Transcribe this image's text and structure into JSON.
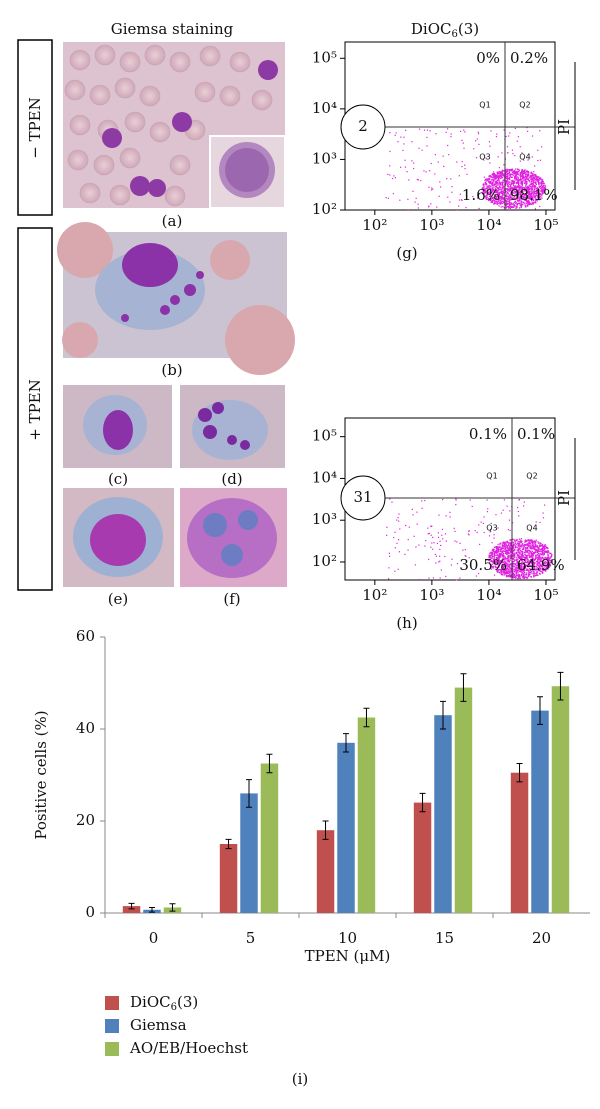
{
  "panels": {
    "giemsa_title": "Giemsa staining",
    "minus_tpen": "− TPEN",
    "plus_tpen": "+ TPEN",
    "image_labels": [
      "(a)",
      "(b)",
      "(c)",
      "(d)",
      "(e)",
      "(f)"
    ]
  },
  "flow_cytometry": {
    "title": "DiOC6(3)",
    "plots": [
      {
        "label": "(g)",
        "circle": "2",
        "axis_label": "PI",
        "quadrants": [
          "Q1",
          "Q2",
          "Q3",
          "Q4"
        ],
        "percents": [
          {
            "value": 0,
            "label": "0%"
          },
          {
            "value": 0.2,
            "label": "0.2%"
          },
          {
            "value": 1.6,
            "label": "1.6%"
          },
          {
            "value": 98.1,
            "label": "98.1%"
          }
        ],
        "xlim": [
          30,
          144000
        ],
        "ylim": [
          100,
          210000
        ],
        "xticks": [
          {
            "value": 100,
            "label": "10²"
          },
          {
            "value": 1000,
            "label": "10³"
          },
          {
            "value": 10000,
            "label": "10⁴"
          },
          {
            "value": 100000,
            "label": "10⁵"
          }
        ],
        "yticks": [
          {
            "value": 100,
            "label": "10²"
          },
          {
            "value": 1000,
            "label": "10³"
          },
          {
            "value": 10000,
            "label": "10⁴"
          },
          {
            "value": 100000,
            "label": "10⁵"
          }
        ]
      },
      {
        "label": "(h)",
        "circle": "31",
        "axis_label": "PI",
        "quadrants": [
          "Q1",
          "Q2",
          "Q3",
          "Q4"
        ],
        "percents": [
          {
            "value": 0.1,
            "label": "0.1%"
          },
          {
            "value": 0.1,
            "label": "0.1%"
          },
          {
            "value": 30.5,
            "label": "30.5%"
          },
          {
            "value": 64.9,
            "label": "64.9%"
          }
        ],
        "xlim": [
          30,
          144000
        ],
        "ylim": [
          37,
          280000
        ],
        "xticks": [
          {
            "value": 100,
            "label": "10²"
          },
          {
            "value": 1000,
            "label": "10³"
          },
          {
            "value": 10000,
            "label": "10⁴"
          },
          {
            "value": 100000,
            "label": "10⁵"
          }
        ],
        "yticks": [
          {
            "value": 100,
            "label": "10²"
          },
          {
            "value": 1000,
            "label": "10³"
          },
          {
            "value": 10000,
            "label": "10⁴"
          },
          {
            "value": 100000,
            "label": "10⁵"
          }
        ]
      }
    ]
  },
  "chart_data": {
    "type": "bar",
    "categories": [
      "0",
      "5",
      "10",
      "15",
      "20"
    ],
    "series": [
      {
        "name": "DiOC6(3)",
        "color": "#c0504d",
        "values": [
          1.5,
          15,
          18,
          24,
          30.5
        ],
        "errors": [
          0.6,
          1,
          2,
          2,
          2
        ]
      },
      {
        "name": "Giemsa",
        "color": "#4f81bd",
        "values": [
          0.7,
          26,
          37,
          43,
          44
        ],
        "errors": [
          0.5,
          3,
          2,
          3,
          3
        ]
      },
      {
        "name": "AO/EB/Hoechst",
        "color": "#9bbb59",
        "values": [
          1.2,
          32.5,
          42.5,
          49,
          49.3
        ],
        "errors": [
          0.8,
          2,
          2,
          3,
          3
        ]
      }
    ],
    "ylim": [
      0,
      60
    ],
    "yticks": [
      0,
      20,
      40,
      60
    ],
    "x_label": "TPEN (μM)",
    "y_label": "Positive cells (%)",
    "panel_label": "(i)"
  }
}
